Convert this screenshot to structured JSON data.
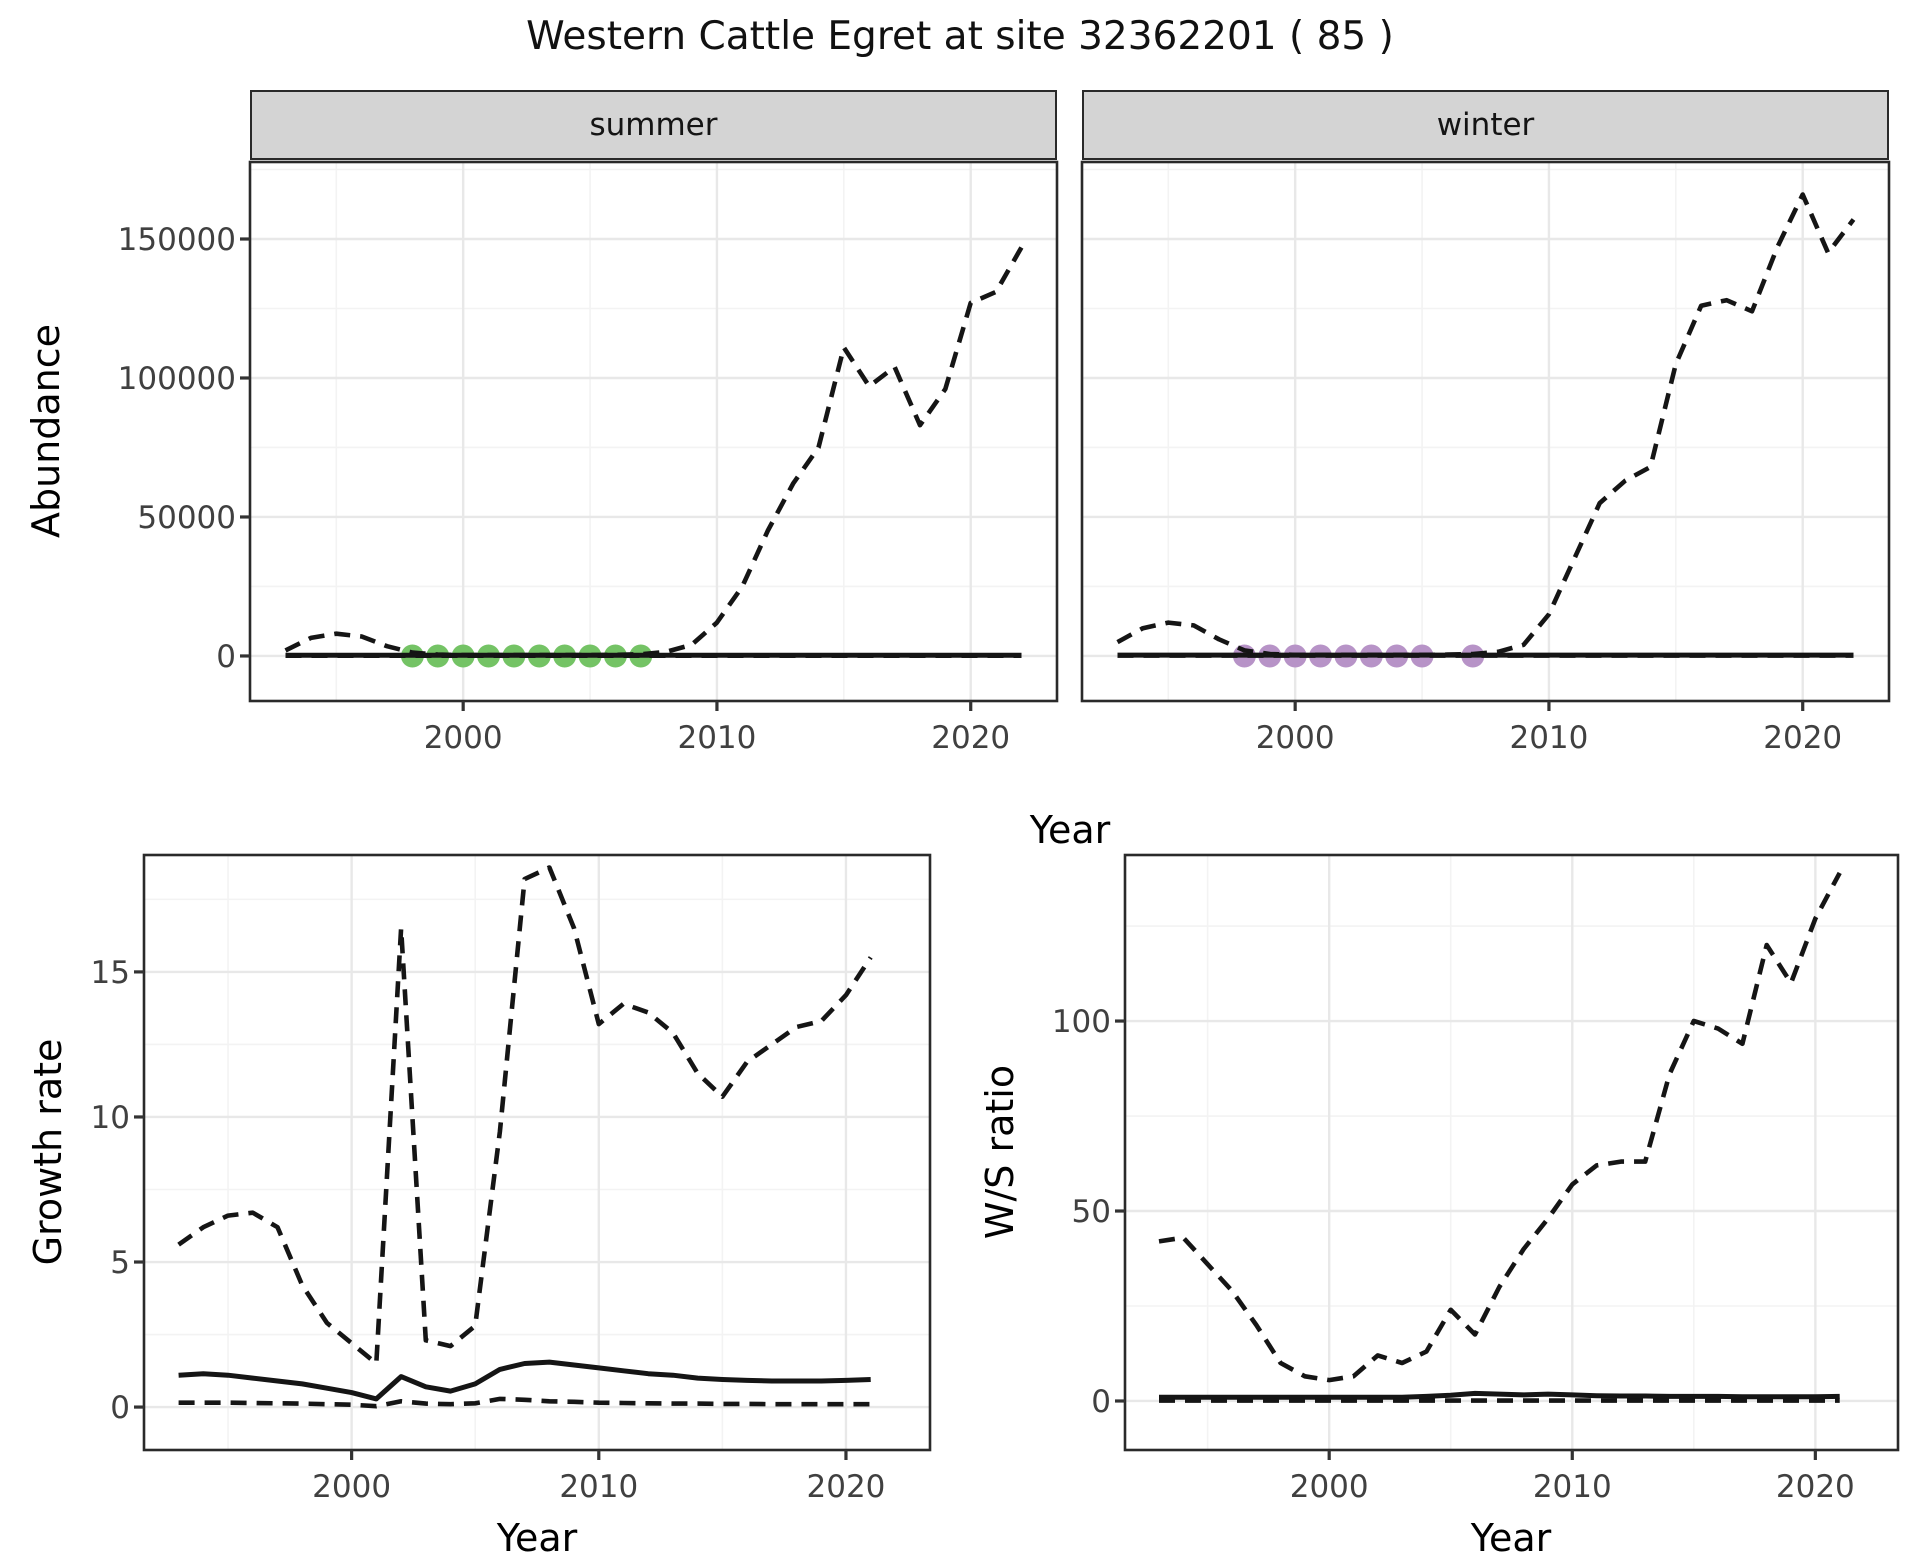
{
  "title": "Western Cattle Egret at site 32362201 ( 85 )",
  "colors": {
    "summer_dots": "#74c365",
    "winter_dots": "#b793c7",
    "line": "#151515",
    "strip_bg": "#d4d4d4",
    "panel_border": "#2a2a2a",
    "grid_major": "#e8e8e8",
    "grid_minor": "#f3f3f3",
    "tick_text": "#404040",
    "panel_bg": "#ffffff"
  },
  "chart_data": [
    {
      "type": "line",
      "name": "abundance-by-season",
      "ylabel": "Abundance",
      "xlabel": "Year",
      "grid": true,
      "legend": "none",
      "xticks": [
        2000,
        2010,
        2020
      ],
      "xtick_labels": [
        "2000",
        "2010",
        "2020"
      ],
      "yticks": [
        0,
        50000,
        100000,
        150000
      ],
      "ytick_labels": [
        "0",
        "50000",
        "100000",
        "150000"
      ],
      "xlim": [
        1991.6,
        2023.4
      ],
      "ylim": [
        -16200,
        177700
      ],
      "years": [
        1993,
        1994,
        1995,
        1996,
        1997,
        1998,
        1999,
        2000,
        2001,
        2002,
        2003,
        2004,
        2005,
        2006,
        2007,
        2008,
        2009,
        2010,
        2011,
        2012,
        2013,
        2014,
        2015,
        2016,
        2017,
        2018,
        2019,
        2020,
        2021,
        2022
      ],
      "facets": [
        {
          "label": "summer",
          "series": [
            {
              "name": "upper_ci",
              "style": "dashed",
              "values": [
                2000,
                6500,
                8000,
                7000,
                3500,
                1200,
                500,
                300,
                300,
                300,
                300,
                300,
                300,
                400,
                600,
                1500,
                4000,
                12000,
                25000,
                45000,
                62000,
                75000,
                111000,
                97000,
                104000,
                83000,
                96000,
                127000,
                131000,
                147000
              ]
            },
            {
              "name": "median",
              "style": "solid",
              "values": [
                250,
                250,
                250,
                250,
                250,
                250,
                250,
                250,
                250,
                250,
                250,
                250,
                250,
                250,
                250,
                250,
                250,
                250,
                250,
                250,
                250,
                250,
                250,
                250,
                250,
                250,
                250,
                250,
                250,
                250
              ]
            },
            {
              "name": "lower_ci",
              "style": "dashed",
              "values": [
                100,
                100,
                100,
                100,
                100,
                100,
                100,
                100,
                100,
                100,
                100,
                100,
                100,
                100,
                100,
                100,
                100,
                100,
                100,
                100,
                100,
                100,
                100,
                100,
                100,
                100,
                100,
                100,
                100,
                100
              ]
            }
          ],
          "observed_dots": {
            "color_key": "summer_dots",
            "value": 0,
            "years": [
              1998,
              1999,
              2000,
              2001,
              2002,
              2003,
              2004,
              2005,
              2006,
              2007
            ]
          }
        },
        {
          "label": "winter",
          "series": [
            {
              "name": "upper_ci",
              "style": "dashed",
              "values": [
                5000,
                10000,
                12000,
                11000,
                6000,
                2000,
                700,
                400,
                400,
                400,
                400,
                400,
                400,
                500,
                700,
                1500,
                4000,
                15000,
                35000,
                55000,
                63000,
                68000,
                105000,
                126000,
                128000,
                124000,
                147000,
                166000,
                145000,
                157000
              ]
            },
            {
              "name": "median",
              "style": "solid",
              "values": [
                300,
                300,
                300,
                300,
                300,
                300,
                300,
                300,
                300,
                300,
                300,
                300,
                300,
                300,
                300,
                300,
                300,
                300,
                300,
                300,
                300,
                300,
                300,
                300,
                300,
                300,
                300,
                300,
                300,
                300
              ]
            },
            {
              "name": "lower_ci",
              "style": "dashed",
              "values": [
                150,
                150,
                150,
                150,
                150,
                150,
                150,
                150,
                150,
                150,
                150,
                150,
                150,
                150,
                150,
                150,
                150,
                150,
                150,
                150,
                150,
                150,
                150,
                150,
                150,
                150,
                150,
                150,
                150,
                150
              ]
            }
          ],
          "observed_dots": {
            "color_key": "winter_dots",
            "value": 0,
            "years": [
              1998,
              1999,
              2000,
              2001,
              2002,
              2003,
              2004,
              2005,
              2007
            ]
          }
        }
      ]
    },
    {
      "type": "line",
      "name": "growth-rate",
      "ylabel": "Growth rate",
      "xlabel": "Year",
      "grid": true,
      "legend": "none",
      "xticks": [
        2000,
        2010,
        2020
      ],
      "xtick_labels": [
        "2000",
        "2010",
        "2020"
      ],
      "yticks": [
        0,
        5,
        10,
        15
      ],
      "ytick_labels": [
        "0",
        "5",
        "10",
        "15"
      ],
      "xlim": [
        1991.6,
        2023.4
      ],
      "ylim": [
        -1.48,
        19.03
      ],
      "years": [
        1993,
        1994,
        1995,
        1996,
        1997,
        1998,
        1999,
        2000,
        2001,
        2002,
        2003,
        2004,
        2005,
        2006,
        2007,
        2008,
        2009,
        2010,
        2011,
        2012,
        2013,
        2014,
        2015,
        2016,
        2017,
        2018,
        2019,
        2020,
        2021
      ],
      "series": [
        {
          "name": "upper_ci",
          "style": "dashed",
          "values": [
            5.6,
            6.2,
            6.6,
            6.7,
            6.2,
            4.2,
            2.9,
            2.2,
            1.5,
            16.5,
            2.3,
            2.1,
            2.8,
            9.5,
            18.2,
            18.6,
            16.5,
            13.2,
            13.9,
            13.6,
            12.9,
            11.5,
            10.7,
            11.9,
            12.5,
            13.1,
            13.3,
            14.2,
            15.5
          ]
        },
        {
          "name": "median",
          "style": "solid",
          "values": [
            1.1,
            1.15,
            1.1,
            1.0,
            0.9,
            0.8,
            0.65,
            0.5,
            0.28,
            1.05,
            0.7,
            0.55,
            0.8,
            1.3,
            1.5,
            1.55,
            1.45,
            1.35,
            1.25,
            1.15,
            1.1,
            1.0,
            0.95,
            0.92,
            0.9,
            0.9,
            0.9,
            0.92,
            0.95
          ]
        },
        {
          "name": "lower_ci",
          "style": "dashed",
          "values": [
            0.15,
            0.15,
            0.15,
            0.14,
            0.13,
            0.12,
            0.1,
            0.08,
            0.03,
            0.2,
            0.12,
            0.1,
            0.13,
            0.28,
            0.25,
            0.2,
            0.18,
            0.15,
            0.14,
            0.13,
            0.12,
            0.12,
            0.11,
            0.11,
            0.1,
            0.1,
            0.1,
            0.1,
            0.1
          ]
        }
      ]
    },
    {
      "type": "line",
      "name": "ws-ratio",
      "ylabel": "W/S ratio",
      "xlabel": "Year",
      "grid": true,
      "legend": "none",
      "xticks": [
        2000,
        2010,
        2020
      ],
      "xtick_labels": [
        "2000",
        "2010",
        "2020"
      ],
      "yticks": [
        0,
        50,
        100
      ],
      "ytick_labels": [
        "0",
        "50",
        "100"
      ],
      "xlim": [
        1991.6,
        2023.4
      ],
      "ylim": [
        -12.9,
        143.7
      ],
      "years": [
        1993,
        1994,
        1995,
        1996,
        1997,
        1998,
        1999,
        2000,
        2001,
        2002,
        2003,
        2004,
        2005,
        2006,
        2007,
        2008,
        2009,
        2010,
        2011,
        2012,
        2013,
        2014,
        2015,
        2016,
        2017,
        2018,
        2019,
        2020,
        2021
      ],
      "series": [
        {
          "name": "upper_ci",
          "style": "dashed",
          "values": [
            42,
            43,
            36,
            29,
            20,
            10,
            6.5,
            5.5,
            6.5,
            12,
            10,
            13,
            24,
            17.5,
            30,
            40,
            48,
            57,
            62,
            63,
            63,
            86,
            100,
            98,
            94,
            120,
            110,
            127,
            139
          ]
        },
        {
          "name": "median",
          "style": "solid",
          "values": [
            1,
            1,
            1,
            1,
            1,
            1,
            1,
            1,
            1,
            1,
            1,
            1.2,
            1.5,
            2,
            1.8,
            1.6,
            1.8,
            1.6,
            1.4,
            1.3,
            1.3,
            1.2,
            1.2,
            1.2,
            1.1,
            1.1,
            1.1,
            1.1,
            1.2
          ]
        },
        {
          "name": "lower_ci",
          "style": "dashed",
          "values": [
            0.1,
            0.1,
            0.1,
            0.1,
            0.1,
            0.1,
            0.1,
            0.1,
            0.1,
            0.1,
            0.1,
            0.1,
            0.1,
            0.1,
            0.1,
            0.1,
            0.1,
            0.1,
            0.1,
            0.1,
            0.1,
            0.1,
            0.1,
            0.1,
            0.1,
            0.1,
            0.1,
            0.1,
            0.1
          ]
        }
      ]
    }
  ]
}
